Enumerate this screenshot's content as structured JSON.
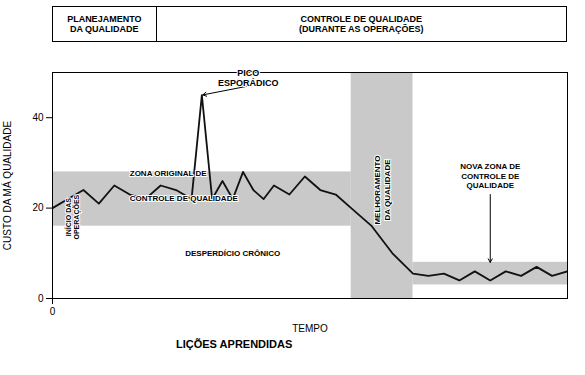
{
  "chart_data": {
    "type": "line",
    "xlabel": "TEMPO",
    "ylabel": "CUSTO DA MÁ QUALIDADE",
    "x": [
      0.0,
      0.3,
      0.6,
      0.9,
      1.2,
      1.5,
      1.8,
      2.1,
      2.4,
      2.7,
      2.9,
      3.1,
      3.3,
      3.5,
      3.7,
      3.9,
      4.1,
      4.3,
      4.6,
      4.9,
      5.2,
      5.5,
      5.8,
      6.2,
      6.6,
      7.0,
      7.3,
      7.6,
      7.9,
      8.2,
      8.5,
      8.8,
      9.1,
      9.4,
      9.7,
      10.0
    ],
    "values": [
      20,
      22,
      24,
      21,
      25,
      23,
      22,
      25,
      24,
      22,
      45,
      22,
      26,
      22,
      28,
      24,
      22,
      25,
      23,
      27,
      24,
      23,
      20,
      16,
      10,
      5.5,
      5,
      5.5,
      4,
      6,
      4,
      6,
      5,
      7,
      5,
      6
    ],
    "color": "#111111",
    "xlim": [
      0,
      10
    ],
    "ylim": [
      0,
      50
    ],
    "xticks": [
      0
    ],
    "yticks": [
      0,
      20,
      40
    ],
    "zones": [
      {
        "x": [
          0,
          5.8
        ],
        "y": [
          16,
          28
        ],
        "color": "#c0c0c0"
      },
      {
        "x": [
          5.8,
          7.0
        ],
        "y": [
          0,
          50
        ],
        "color": "#c0c0c0"
      },
      {
        "x": [
          7.0,
          10
        ],
        "y": [
          3,
          8
        ],
        "color": "#c0c0c0"
      }
    ],
    "reference_lines": [
      {
        "x": 0
      }
    ],
    "annotations": [
      {
        "text": "PICO\nESPORÁDICO",
        "x": 3.8,
        "y": 47,
        "arrow_to": [
          2.9,
          45
        ]
      },
      {
        "text": "ZONA ORIGINAL DE",
        "x": 1.5,
        "y": 27
      },
      {
        "text": "CONTROLE DE QUALIDADE",
        "x": 1.5,
        "y": 23
      },
      {
        "text": "DESPERDÍCIO CRÔNICO",
        "x": 3.5,
        "y": 10
      },
      {
        "text": "INÍCIO DAS\nOPERAÇÕES",
        "x": 0.25,
        "y": 18
      },
      {
        "text": "MELHORAMENTO\nDA QUALIDADE",
        "x": 6.4,
        "y": 24
      },
      {
        "text": "NOVA ZONA DE\nCONTROLE DE\nQUALIDADE",
        "x": 8.5,
        "y": 30
      }
    ],
    "arrows": [
      {
        "from": [
          8.5,
          23
        ],
        "to": [
          8.5,
          8
        ]
      }
    ],
    "header": [
      "PLANEJAMENTO\nDA QUALIDADE",
      "CONTROLE DE QUALIDADE\n(DURANTE AS OPERAÇÕES)"
    ],
    "footer": "LIÇÕES APRENDIDAS"
  }
}
